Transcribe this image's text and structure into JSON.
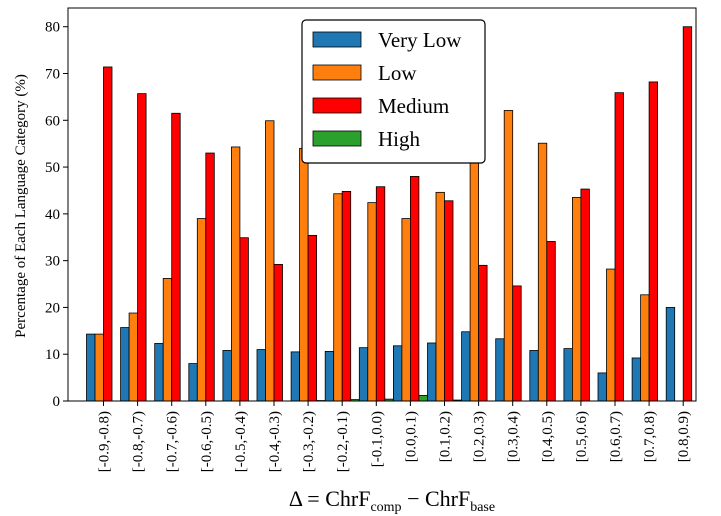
{
  "chart_data": {
    "type": "bar",
    "ylabel": "Percentage of Each Language Category (%)",
    "xlabel": {
      "prefix": "Δ = ChrF",
      "sub1": "comp",
      "minus": " − ChrF",
      "sub2": "base"
    },
    "ylim": [
      0,
      84
    ],
    "yticks": [
      0,
      10,
      20,
      30,
      40,
      50,
      60,
      70,
      80
    ],
    "grid": false,
    "legend_position": "top-center",
    "categories": [
      "[-0.9,-0.8)",
      "[-0.8,-0.7)",
      "[-0.7,-0.6)",
      "[-0.6,-0.5)",
      "[-0.5,-0.4)",
      "[-0.4,-0.3)",
      "[-0.3,-0.2)",
      "[-0.2,-0.1)",
      "[-0.1,0.0)",
      "[0.0,0.1)",
      "[0.1,0.2)",
      "[0.2,0.3)",
      "[0.3,0.4)",
      "[0.4,0.5)",
      "[0.5,0.6)",
      "[0.6,0.7)",
      "[0.7,0.8)",
      "[0.8,0.9)"
    ],
    "series": [
      {
        "name": "Very Low",
        "color": "#1f77b4",
        "values": [
          14.3,
          15.7,
          12.3,
          8.0,
          10.8,
          11.0,
          10.5,
          10.6,
          11.4,
          11.8,
          12.4,
          14.8,
          13.3,
          10.8,
          11.2,
          6.0,
          9.2,
          20.0
        ]
      },
      {
        "name": "Low",
        "color": "#ff7f0e",
        "values": [
          14.3,
          18.8,
          26.2,
          39.0,
          54.3,
          59.9,
          54.0,
          44.3,
          42.4,
          39.0,
          44.6,
          56.2,
          62.1,
          55.1,
          43.5,
          28.2,
          22.7,
          0
        ]
      },
      {
        "name": "Medium",
        "color": "#ff0000",
        "values": [
          71.4,
          65.7,
          61.5,
          53.0,
          34.9,
          29.2,
          35.4,
          44.8,
          45.8,
          48.0,
          42.8,
          29.0,
          24.6,
          34.1,
          45.3,
          65.9,
          68.2,
          80.0
        ]
      },
      {
        "name": "High",
        "color": "#2ca02c",
        "values": [
          0,
          0,
          0,
          0,
          0,
          0,
          0.1,
          0.3,
          0.4,
          1.2,
          0.2,
          0,
          0,
          0,
          0,
          0,
          0,
          0
        ]
      }
    ]
  }
}
